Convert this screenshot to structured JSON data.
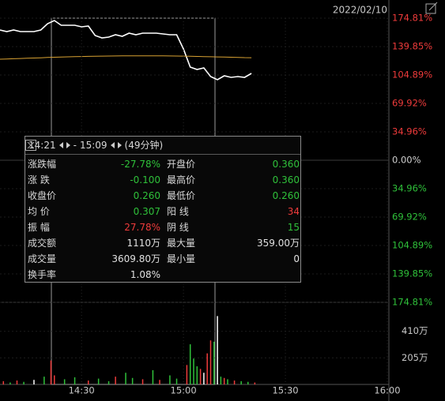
{
  "date": "2022/02/10",
  "chart_data": [
    {
      "type": "line",
      "x": [
        846,
        848,
        850,
        852,
        854,
        856,
        858,
        860,
        862,
        864,
        866,
        868,
        870,
        872,
        874,
        876,
        878,
        880,
        882,
        884,
        886,
        888,
        890,
        892,
        894,
        896,
        898,
        900,
        902,
        904,
        906,
        908,
        910,
        912,
        914,
        916,
        918,
        920
      ],
      "series": [
        {
          "color": "#ffffff",
          "values": [
            160.2,
            158.3,
            160.2,
            158.3,
            158.3,
            158.3,
            160.2,
            168.0,
            171.9,
            166.1,
            166.1,
            166.1,
            164.1,
            165.1,
            153.4,
            150.5,
            151.5,
            154.4,
            152.5,
            156.4,
            154.4,
            156.4,
            156.4,
            156.4,
            155.4,
            154.4,
            154.4,
            136.9,
            114.6,
            111.7,
            113.6,
            102.9,
            99.1,
            103.9,
            102.0,
            102.9,
            102.0,
            106.8
          ]
        },
        {
          "color": "#d9a233",
          "values": [
            124.3,
            124.6,
            124.9,
            125.2,
            125.5,
            125.8,
            126.1,
            126.4,
            126.7,
            127.0,
            127.2,
            127.4,
            127.6,
            127.8,
            128.0,
            128.1,
            128.2,
            128.3,
            128.4,
            128.5,
            128.5,
            128.5,
            128.5,
            128.4,
            128.4,
            128.3,
            128.2,
            128.1,
            127.9,
            127.7,
            127.5,
            127.3,
            127.1,
            126.9,
            126.7,
            126.5,
            126.3,
            126.2
          ]
        }
      ],
      "xlim": [
        846,
        960
      ],
      "ylim": [
        -174.81,
        174.81
      ],
      "yticks": [
        {
          "value": 174.81,
          "label": "174.81%"
        },
        {
          "value": 139.85,
          "label": "139.85%"
        },
        {
          "value": 104.89,
          "label": "104.89%"
        },
        {
          "value": 69.92,
          "label": "69.92%"
        },
        {
          "value": 34.96,
          "label": "34.96%"
        },
        {
          "value": 0,
          "label": "0.00%"
        },
        {
          "value": -34.96,
          "label": "34.96%"
        },
        {
          "value": -69.92,
          "label": "69.92%"
        },
        {
          "value": -104.89,
          "label": "104.89%"
        },
        {
          "value": -139.85,
          "label": "139.85%"
        },
        {
          "value": -174.81,
          "label": "174.81%"
        }
      ]
    },
    {
      "type": "bar",
      "x": [
        847,
        849,
        851,
        853,
        856,
        859,
        861,
        862,
        865,
        868,
        872,
        875,
        878,
        880,
        883,
        885,
        888,
        891,
        893,
        896,
        898,
        901,
        902,
        903,
        904,
        905,
        906,
        907,
        908,
        909,
        910,
        911,
        912,
        913,
        915,
        917,
        919,
        921
      ],
      "values": [
        25,
        15,
        30,
        20,
        35,
        60,
        185,
        70,
        40,
        55,
        30,
        45,
        25,
        60,
        90,
        50,
        40,
        110,
        35,
        70,
        45,
        150,
        310,
        200,
        140,
        120,
        90,
        240,
        340,
        330,
        528,
        60,
        50,
        40,
        30,
        25,
        20,
        15
      ],
      "colors": [
        "#ef3b3b",
        "#2fc13a",
        "#ef3b3b",
        "#2fc13a",
        "#ffffff",
        "#2fc13a",
        "#ef3b3b",
        "#ef3b3b",
        "#2fc13a",
        "#2fc13a",
        "#ef3b3b",
        "#2fc13a",
        "#2fc13a",
        "#ef3b3b",
        "#2fc13a",
        "#2fc13a",
        "#ef3b3b",
        "#2fc13a",
        "#ef3b3b",
        "#2fc13a",
        "#2fc13a",
        "#ef3b3b",
        "#2fc13a",
        "#2fc13a",
        "#2fc13a",
        "#ef3b3b",
        "#ffffff",
        "#ef3b3b",
        "#ef3b3b",
        "#2fc13a",
        "#ffffff",
        "#2fc13a",
        "#ef3b3b",
        "#2fc13a",
        "#ef3b3b",
        "#2fc13a",
        "#2fc13a",
        "#ef3b3b"
      ],
      "xlim": [
        846,
        960
      ],
      "ylim": [
        0,
        634
      ],
      "yticks": [
        {
          "value": 410,
          "label": "410万"
        },
        {
          "value": 205,
          "label": "205万"
        }
      ],
      "xticks": [
        {
          "value": 870,
          "label": "14:30"
        },
        {
          "value": 900,
          "label": "15:00"
        },
        {
          "value": 930,
          "label": "15:30"
        },
        {
          "value": 960,
          "label": "16:00"
        }
      ]
    }
  ],
  "tooltip": {
    "start": "14:21",
    "end": "15:09",
    "duration": "(49分钟)",
    "rows": [
      [
        "涨跌幅",
        "-27.78%",
        "开盘价",
        "0.360"
      ],
      [
        "涨 跌",
        "-0.100",
        "最高价",
        "0.360"
      ],
      [
        "收盘价",
        "0.260",
        "最低价",
        "0.260"
      ],
      [
        "均 价",
        "0.307",
        "阳 线",
        "34"
      ],
      [
        "振 幅",
        "27.78%",
        "阴 线",
        "15"
      ],
      [
        "成交额",
        "1110万",
        "最大量",
        "359.00万"
      ],
      [
        "成交量",
        "3609.80万",
        "最小量",
        "0"
      ],
      [
        "换手率",
        "1.08%"
      ]
    ]
  }
}
